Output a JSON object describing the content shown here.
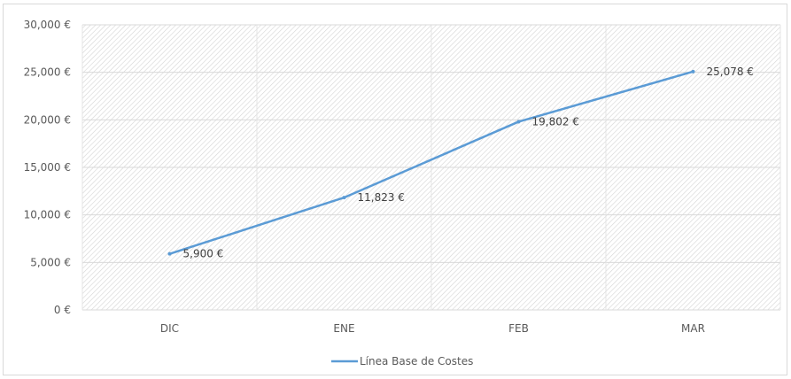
{
  "chart_data": {
    "type": "line",
    "title": "",
    "xlabel": "",
    "ylabel": "",
    "categories": [
      "DIC",
      "ENE",
      "FEB",
      "MAR"
    ],
    "ylim": [
      0,
      30000
    ],
    "yticks": [
      0,
      5000,
      10000,
      15000,
      20000,
      25000,
      30000
    ],
    "ytick_labels": [
      "0 €",
      "5,000 €",
      "10,000 €",
      "15,000 €",
      "20,000 €",
      "25,000 €",
      "30,000 €"
    ],
    "grid": true,
    "legend_position": "bottom",
    "series": [
      {
        "name": "Línea Base de Costes",
        "values": [
          5900,
          11823,
          19802,
          25078
        ],
        "data_labels": [
          "5,900 €",
          "11,823 €",
          "19,802 €",
          "25,078 €"
        ],
        "color": "#5b9bd5"
      }
    ]
  }
}
